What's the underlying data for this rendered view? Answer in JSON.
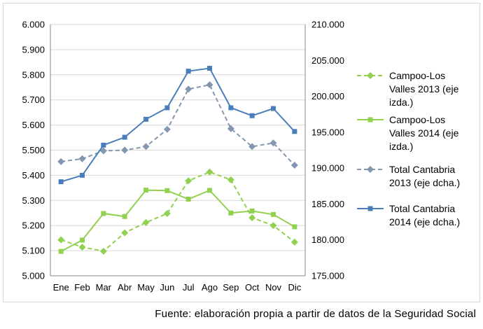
{
  "chart_data": {
    "type": "line",
    "categories": [
      "Ene",
      "Feb",
      "Mar",
      "Abr",
      "May",
      "Jun",
      "Jul",
      "Ago",
      "Sep",
      "Oct",
      "Nov",
      "Dic"
    ],
    "y_left": {
      "range": [
        5000,
        6000
      ],
      "ticks": [
        5000,
        5100,
        5200,
        5300,
        5400,
        5500,
        5600,
        5700,
        5800,
        5900,
        6000
      ],
      "tick_labels": [
        "5.000",
        "5.100",
        "5.200",
        "5.300",
        "5.400",
        "5.500",
        "5.600",
        "5.700",
        "5.800",
        "5.900",
        "6.000"
      ]
    },
    "y_right": {
      "range": [
        175000,
        210000
      ],
      "ticks": [
        175000,
        180000,
        185000,
        190000,
        195000,
        200000,
        205000,
        210000
      ],
      "tick_labels": [
        "175.000",
        "180.000",
        "185.000",
        "190.000",
        "195.000",
        "200.000",
        "205.000",
        "210.000"
      ]
    },
    "grid": true,
    "legend_position": "right",
    "series": [
      {
        "name": "Campoo-Los Valles 2013 (eje izda.)",
        "axis": "left",
        "color": "#92d050",
        "dashed": true,
        "marker": "diamond",
        "values": [
          5143,
          5114,
          5098,
          5171,
          5212,
          5248,
          5378,
          5413,
          5382,
          5231,
          5200,
          5134
        ]
      },
      {
        "name": "Campoo-Los Valles 2014 (eje izda.)",
        "axis": "left",
        "color": "#92d050",
        "dashed": false,
        "marker": "square",
        "values": [
          5097,
          5142,
          5248,
          5236,
          5341,
          5339,
          5305,
          5340,
          5250,
          5258,
          5244,
          5195
        ]
      },
      {
        "name": "Total Cantabria 2013 (eje dcha.)",
        "axis": "right",
        "color": "#8497b0",
        "dashed": true,
        "marker": "diamond",
        "values": [
          190900,
          191300,
          192400,
          192500,
          193000,
          195400,
          201000,
          201600,
          195500,
          193000,
          193500,
          190400
        ]
      },
      {
        "name": "Total Cantabria 2014 (eje dcha.)",
        "axis": "right",
        "color": "#4a7ebb",
        "dashed": false,
        "marker": "square",
        "values": [
          188100,
          189000,
          193200,
          194300,
          196800,
          198400,
          203500,
          203900,
          198400,
          197300,
          198300,
          195100
        ]
      }
    ]
  },
  "legend": {
    "s0": [
      "Campoo-Los",
      "Valles 2013 (eje",
      "izda.)"
    ],
    "s1": [
      "Campoo-Los",
      "Valles 2014 (eje",
      "izda.)"
    ],
    "s2": [
      "Total Cantabria",
      "2013 (eje dcha.)"
    ],
    "s3": [
      "Total Cantabria",
      "2014 (eje dcha.)"
    ]
  },
  "source_note": "Fuente: elaboración propia a partir de datos de la Seguridad Social"
}
